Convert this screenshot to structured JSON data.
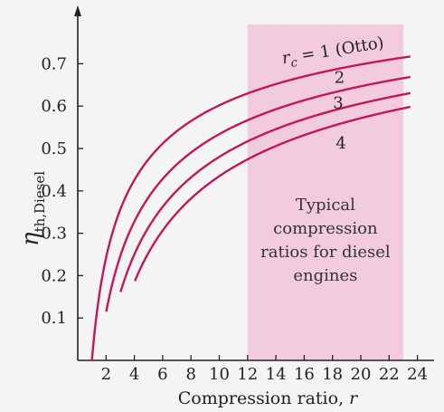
{
  "chart_data": {
    "type": "line",
    "xlabel_text": "Compression ratio, ",
    "xlabel_var": "r",
    "ylabel_main": "η",
    "ylabel_sub": "th,Diesel",
    "xlim": [
      0,
      24.5
    ],
    "ylim": [
      0,
      0.78
    ],
    "xticks": [
      2,
      4,
      6,
      8,
      10,
      12,
      14,
      16,
      18,
      20,
      22,
      24
    ],
    "yticks": [
      0.1,
      0.2,
      0.3,
      0.4,
      0.5,
      0.6,
      0.7
    ],
    "xtick_labels": [
      "2",
      "4",
      "6",
      "8",
      "10",
      "12",
      "14",
      "16",
      "18",
      "20",
      "22",
      "24"
    ],
    "ytick_labels": [
      "0.1",
      "0.2",
      "0.3",
      "0.4",
      "0.5",
      "0.6",
      "0.7"
    ],
    "gamma": 1.4,
    "x_range": [
      1,
      23.5
    ],
    "series_color": "#c2185b",
    "series": [
      {
        "rc": 1,
        "label_prefix": "r",
        "label_sub": "c",
        "label_rest": " = 1 (Otto)",
        "label_x": 14.5,
        "label_y": 0.7
      },
      {
        "rc": 2,
        "label": "2",
        "label_x": 18.5,
        "label_y": 0.655
      },
      {
        "rc": 3,
        "label": "3",
        "label_x": 18.4,
        "label_y": 0.595
      },
      {
        "rc": 4,
        "label": "4",
        "label_x": 18.6,
        "label_y": 0.5
      }
    ],
    "region": {
      "x_start": 12,
      "x_end": 23,
      "color": "#f2cbdd",
      "lines": [
        "Typical",
        "compression",
        "ratios for diesel",
        "engines"
      ]
    }
  }
}
